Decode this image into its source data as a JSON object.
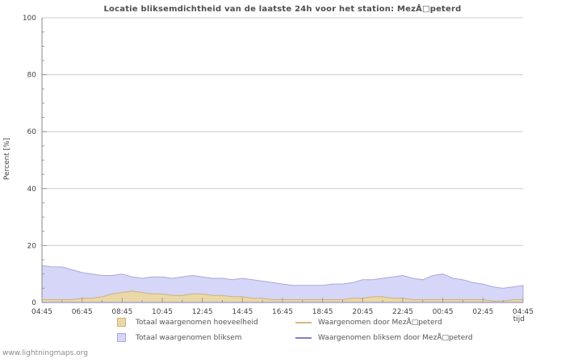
{
  "title": "Locatie bliksemdichtheid van de laatste 24h voor het station: MezÅ□peterd",
  "ylabel": "Percent  [%]",
  "xlabel": "tijd",
  "watermark": "www.lightningmaps.org",
  "colors": {
    "grid": "#cccccc",
    "axis": "#888888",
    "tick": "#999999",
    "tick_text": "#444444"
  },
  "legend": {
    "items": [
      {
        "label": "Totaal waargenomen hoeveelheid",
        "type": "area",
        "color": "#ead9a8",
        "border": "#cdb277"
      },
      {
        "label": "Waargenomen door MezÅ□peterd",
        "type": "line",
        "color": "#d9b87c"
      },
      {
        "label": "Totaal waargenomen bliksem",
        "type": "area",
        "color": "#d6d6f8",
        "border": "#a9a9dd"
      },
      {
        "label": "Waargenomen bliksem door MezÅ□peterd",
        "type": "line",
        "color": "#8080cc"
      }
    ]
  },
  "chart_data": {
    "type": "area",
    "title": "Locatie bliksemdichtheid van de laatste 24h voor het station: MezÅ□peterd",
    "xlabel": "tijd",
    "ylabel": "Percent  [%]",
    "ylim": [
      0,
      100
    ],
    "yticks": [
      0,
      20,
      40,
      60,
      80,
      100
    ],
    "xticks": [
      "04:45",
      "06:45",
      "08:45",
      "10:45",
      "12:45",
      "14:45",
      "16:45",
      "18:45",
      "20:45",
      "22:45",
      "00:45",
      "02:45",
      "04:45"
    ],
    "x": [
      "04:45",
      "05:15",
      "05:45",
      "06:15",
      "06:45",
      "07:15",
      "07:45",
      "08:15",
      "08:45",
      "09:15",
      "09:45",
      "10:15",
      "10:45",
      "11:15",
      "11:45",
      "12:15",
      "12:45",
      "13:15",
      "13:45",
      "14:15",
      "14:45",
      "15:15",
      "15:45",
      "16:15",
      "16:45",
      "17:15",
      "17:45",
      "18:15",
      "18:45",
      "19:15",
      "19:45",
      "20:15",
      "20:45",
      "21:15",
      "21:45",
      "22:15",
      "22:45",
      "23:15",
      "23:45",
      "00:15",
      "00:45",
      "01:15",
      "01:45",
      "02:15",
      "02:45",
      "03:15",
      "03:45",
      "04:15",
      "04:45"
    ],
    "series": [
      {
        "id": "totaal-bliksem",
        "name": "Totaal waargenomen bliksem",
        "fill": "#d6d6f8",
        "stroke": "#a9a9dd",
        "values": [
          13,
          12.5,
          12.5,
          11.5,
          10.5,
          10,
          9.5,
          9.5,
          10,
          9,
          8.5,
          9,
          9,
          8.5,
          9,
          9.5,
          9,
          8.5,
          8.5,
          8,
          8.5,
          8,
          7.5,
          7,
          6.5,
          6,
          6,
          6,
          6,
          6.5,
          6.5,
          7,
          8,
          8,
          8.5,
          9,
          9.5,
          8.5,
          8,
          9.5,
          10,
          8.5,
          8,
          7,
          6.5,
          5.5,
          5,
          5.5,
          6
        ]
      },
      {
        "id": "totaal-hoeveelheid",
        "name": "Totaal waargenomen hoeveelheid",
        "fill": "#ead9a8",
        "stroke": "#cdb277",
        "values": [
          1,
          1,
          1,
          1,
          1.5,
          1.5,
          2,
          3,
          3.5,
          4,
          3.5,
          3,
          3,
          2.5,
          2.5,
          3,
          3,
          2.5,
          2.5,
          2,
          2,
          1.5,
          1.5,
          1,
          1,
          1,
          1,
          1,
          1,
          1,
          1,
          1.5,
          1.5,
          2,
          2,
          1.5,
          1.5,
          1,
          1,
          1,
          1,
          1,
          1,
          1,
          1,
          0.5,
          0.5,
          1,
          1
        ]
      },
      {
        "id": "station-hoeveelheid",
        "name": "Waargenomen door MezÅ□peterd",
        "stroke": "#d9b87c",
        "values": "zero"
      },
      {
        "id": "station-bliksem",
        "name": "Waargenomen bliksem door MezÅ□peterd",
        "stroke": "#8080cc",
        "values": "zero"
      }
    ]
  }
}
